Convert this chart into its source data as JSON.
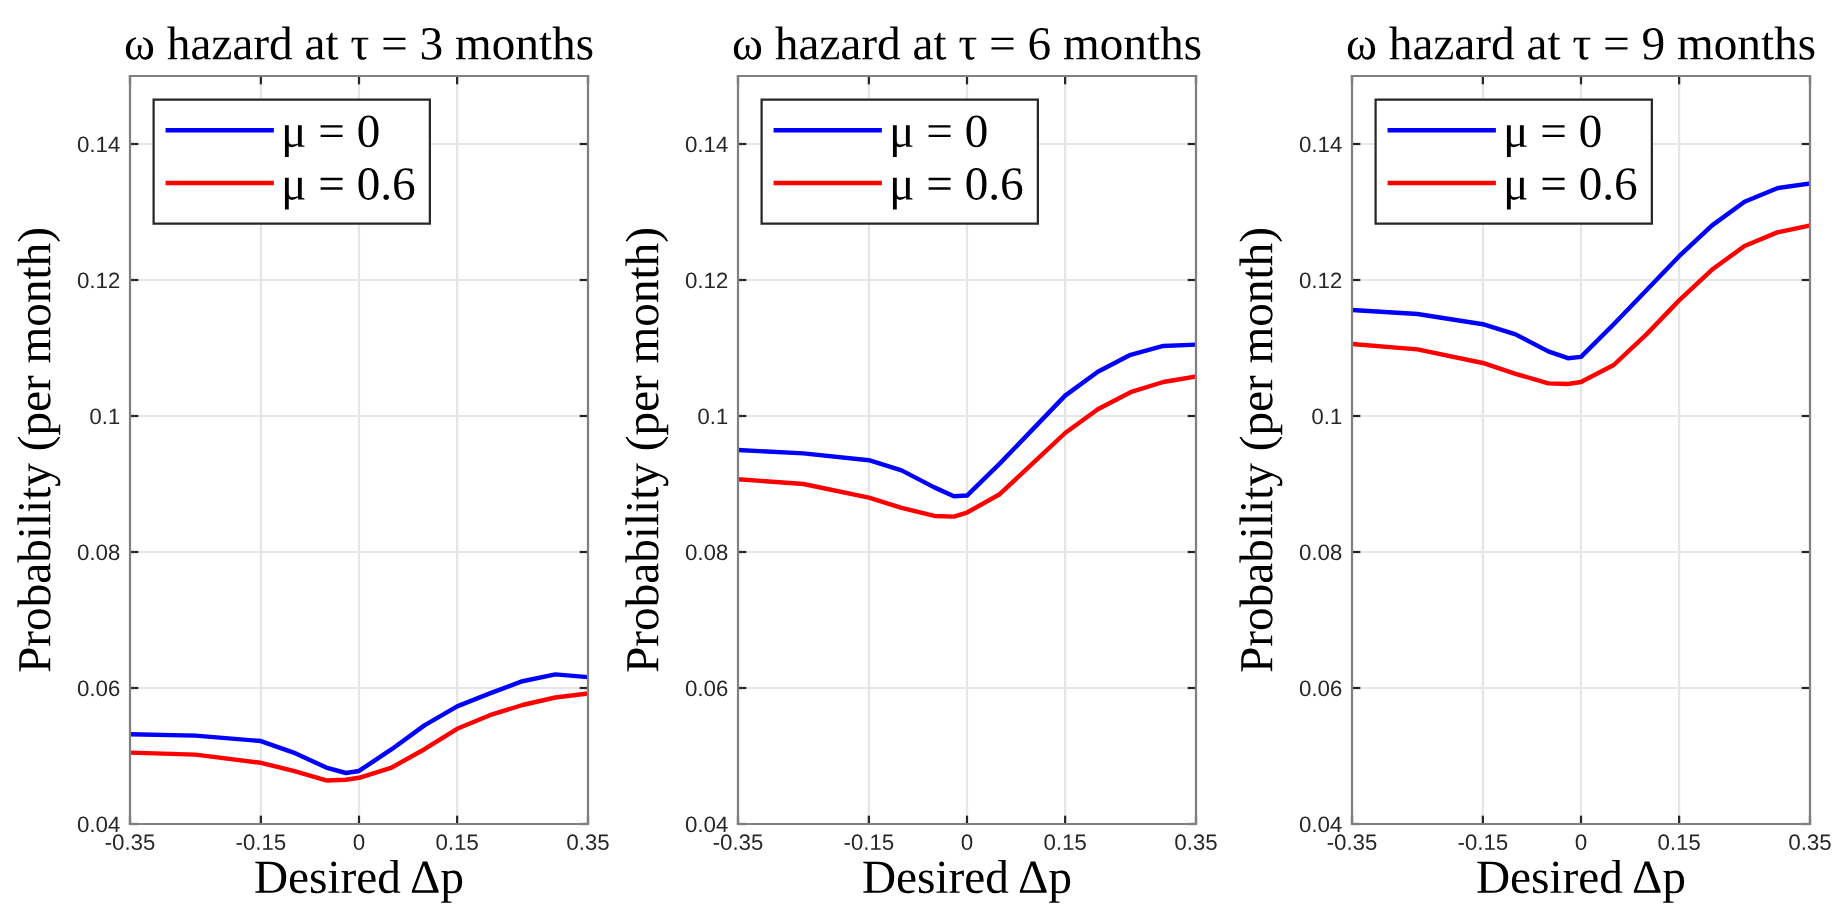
{
  "chart_data": [
    {
      "type": "line",
      "title": "ω hazard at τ = 3 months",
      "xlabel": "Desired Δp",
      "ylabel": "Probability (per month)",
      "x": [
        -0.35,
        -0.25,
        -0.15,
        -0.1,
        -0.05,
        -0.02,
        0,
        0.05,
        0.1,
        0.15,
        0.2,
        0.25,
        0.3,
        0.35
      ],
      "series": [
        {
          "name": "μ = 0",
          "color": "#0000ff",
          "values": [
            0.0532,
            0.053,
            0.0522,
            0.0505,
            0.0483,
            0.0475,
            0.0478,
            0.051,
            0.0545,
            0.0573,
            0.0592,
            0.061,
            0.062,
            0.0616
          ]
        },
        {
          "name": "μ = 0.6",
          "color": "#ff0000",
          "values": [
            0.0505,
            0.0502,
            0.049,
            0.0478,
            0.0464,
            0.0465,
            0.0468,
            0.0483,
            0.051,
            0.054,
            0.056,
            0.0575,
            0.0586,
            0.0592
          ]
        }
      ],
      "xlim": [
        -0.35,
        0.35
      ],
      "xticks": [
        -0.35,
        -0.15,
        0,
        0.15,
        0.35
      ],
      "ylim": [
        0.04,
        0.15
      ],
      "yticks": [
        0.04,
        0.06,
        0.08,
        0.1,
        0.12,
        0.14
      ],
      "grid": true,
      "legend": "top left",
      "line_style": "solid",
      "marker": "none"
    },
    {
      "type": "line",
      "title": "ω hazard at τ = 6 months",
      "xlabel": "Desired Δp",
      "ylabel": "Probability (per month)",
      "x": [
        -0.35,
        -0.25,
        -0.15,
        -0.1,
        -0.05,
        -0.02,
        0,
        0.05,
        0.1,
        0.15,
        0.2,
        0.25,
        0.3,
        0.35
      ],
      "series": [
        {
          "name": "μ = 0",
          "color": "#0000ff",
          "values": [
            0.095,
            0.0945,
            0.0935,
            0.092,
            0.0895,
            0.0882,
            0.0883,
            0.093,
            0.098,
            0.103,
            0.1065,
            0.109,
            0.1103,
            0.1105
          ]
        },
        {
          "name": "μ = 0.6",
          "color": "#ff0000",
          "values": [
            0.0907,
            0.09,
            0.088,
            0.0865,
            0.0853,
            0.0852,
            0.0858,
            0.0885,
            0.093,
            0.0975,
            0.101,
            0.1035,
            0.105,
            0.1058
          ]
        }
      ],
      "xlim": [
        -0.35,
        0.35
      ],
      "xticks": [
        -0.35,
        -0.15,
        0,
        0.15,
        0.35
      ],
      "ylim": [
        0.04,
        0.15
      ],
      "yticks": [
        0.04,
        0.06,
        0.08,
        0.1,
        0.12,
        0.14
      ],
      "grid": true,
      "legend": "top left",
      "line_style": "solid",
      "marker": "none"
    },
    {
      "type": "line",
      "title": "ω hazard at τ = 9 months",
      "xlabel": "Desired Δp",
      "ylabel": "Probability (per month)",
      "x": [
        -0.35,
        -0.25,
        -0.15,
        -0.1,
        -0.05,
        -0.02,
        0,
        0.05,
        0.1,
        0.15,
        0.2,
        0.25,
        0.3,
        0.35
      ],
      "series": [
        {
          "name": "μ = 0",
          "color": "#0000ff",
          "values": [
            0.1156,
            0.115,
            0.1135,
            0.112,
            0.1095,
            0.1085,
            0.1087,
            0.1135,
            0.1185,
            0.1235,
            0.128,
            0.1315,
            0.1335,
            0.1342
          ]
        },
        {
          "name": "μ = 0.6",
          "color": "#ff0000",
          "values": [
            0.1106,
            0.1098,
            0.1078,
            0.1062,
            0.1048,
            0.1047,
            0.105,
            0.1075,
            0.112,
            0.117,
            0.1215,
            0.125,
            0.127,
            0.128
          ]
        }
      ],
      "xlim": [
        -0.35,
        0.35
      ],
      "xticks": [
        -0.35,
        -0.15,
        0,
        0.15,
        0.35
      ],
      "ylim": [
        0.04,
        0.15
      ],
      "yticks": [
        0.04,
        0.06,
        0.08,
        0.1,
        0.12,
        0.14
      ],
      "grid": true,
      "legend": "top left",
      "line_style": "solid",
      "marker": "none"
    }
  ]
}
